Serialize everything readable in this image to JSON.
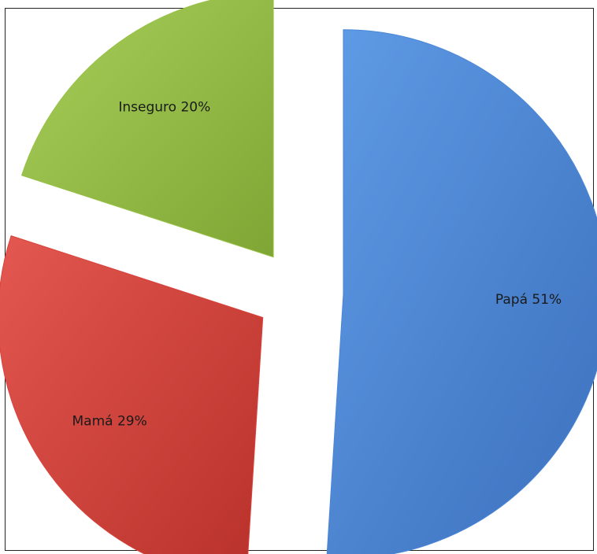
{
  "chart_data": {
    "type": "pie",
    "exploded": true,
    "slices": [
      {
        "label": "Papá 51%",
        "category": "Papá",
        "value": 51,
        "color": "#4a86d8"
      },
      {
        "label": "Mamá 29%",
        "category": "Mamá",
        "value": 29,
        "color": "#d9423b"
      },
      {
        "label": "Inseguro 20%",
        "category": "Inseguro",
        "value": 20,
        "color": "#98c147"
      }
    ],
    "title": "",
    "legend": "none"
  }
}
